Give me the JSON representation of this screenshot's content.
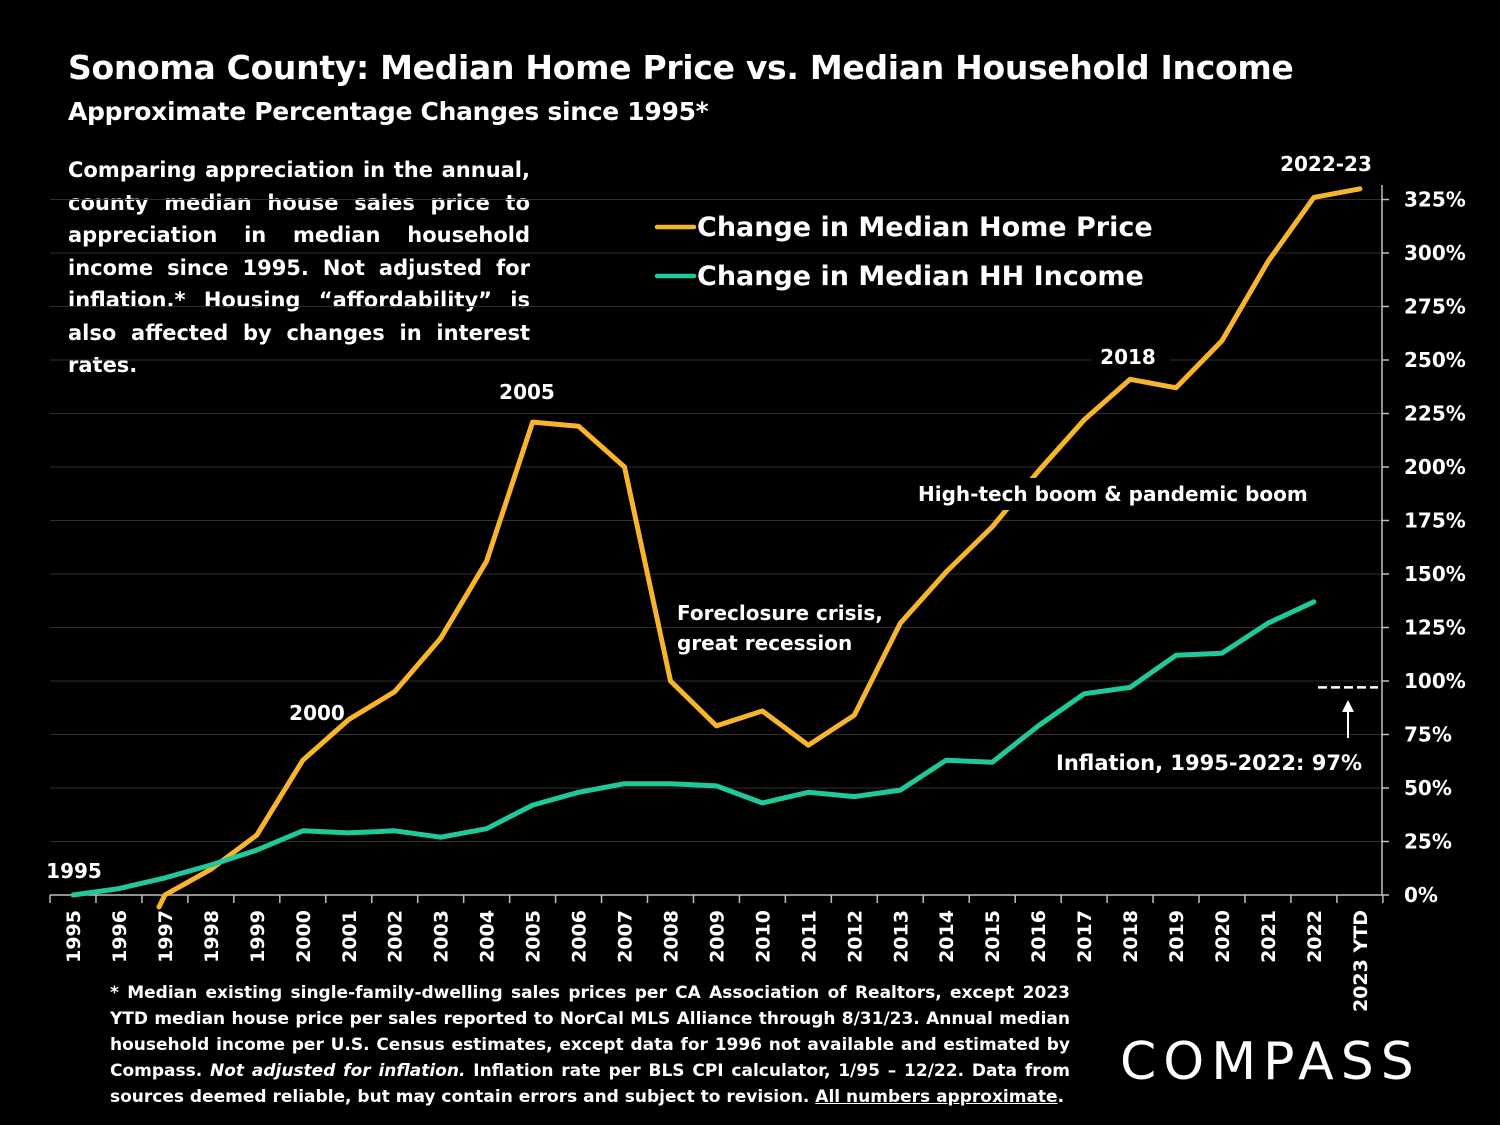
{
  "header": {
    "title": "Sonoma County: Median Home Price vs. Median Household Income",
    "subtitle": "Approximate Percentage Changes since 1995*"
  },
  "description": "Comparing appreciation in the annual, county median house sales price to appreciation in median household income since 1995. Not adjusted for inflation.* Housing “affordability” is also affected by changes in interest rates.",
  "footnote": {
    "part1": "* Median existing single-family-dwelling sales prices per CA Association of Realtors, except 2023 YTD median house price per sales reported to NorCal MLS Alliance through 8/31/23. Annual median household income per U.S. Census estimates, except data for 1996 not available and estimated by Compass. ",
    "italic": "Not adjusted for inflation.",
    "part2": " Inflation rate per BLS CPI calculator, 1/95 – 12/22. Data from sources deemed reliable, but may contain errors and subject to revision. ",
    "underlined": "All numbers approximate",
    "end": "."
  },
  "logo": "COMPASS",
  "colors": {
    "background": "#000000",
    "home_price": "#f7b52b",
    "hh_income": "#1fc99a",
    "text": "#ffffff",
    "grid": "#2e2e2e"
  },
  "chart_data": {
    "type": "line",
    "categories": [
      "1995",
      "1996",
      "1997",
      "1998",
      "1999",
      "2000",
      "2001",
      "2002",
      "2003",
      "2004",
      "2005",
      "2006",
      "2007",
      "2008",
      "2009",
      "2010",
      "2011",
      "2012",
      "2013",
      "2014",
      "2015",
      "2016",
      "2017",
      "2018",
      "2019",
      "2020",
      "2021",
      "2022",
      "2023 YTD"
    ],
    "series": [
      {
        "name": "Change in Median Home Price",
        "color": "#f7b52b",
        "values": [
          null,
          null,
          0,
          12,
          28,
          63,
          82,
          95,
          120,
          156,
          221,
          219,
          200,
          100,
          79,
          86,
          70,
          84,
          127,
          151,
          172,
          198,
          222,
          241,
          237,
          259,
          296,
          326,
          330
        ]
      },
      {
        "name": "Change in Median HH Income",
        "color": "#1fc99a",
        "values": [
          0,
          3,
          8,
          14,
          21,
          30,
          29,
          30,
          27,
          31,
          42,
          48,
          52,
          52,
          51,
          43,
          48,
          46,
          49,
          63,
          62,
          79,
          94,
          97,
          112,
          113,
          127,
          137,
          null
        ]
      }
    ],
    "y_tick_labels": [
      "0%",
      "25%",
      "50%",
      "75%",
      "100%",
      "125%",
      "150%",
      "175%",
      "200%",
      "225%",
      "250%",
      "275%",
      "300%",
      "325%"
    ],
    "ylim": [
      0,
      330
    ],
    "y_axis_side": "right",
    "grid": true,
    "legend_placement": "top-center",
    "inflation_reference": {
      "value": 97,
      "label": "Inflation, 1995-2022:  97%"
    },
    "annotations": [
      {
        "text": "1995",
        "category": "1995"
      },
      {
        "text": "2000",
        "category": "2000"
      },
      {
        "text": "2005",
        "category": "2005"
      },
      {
        "text": "2018",
        "category": "2018"
      },
      {
        "text": "2022-23",
        "category": "2022"
      },
      {
        "text": "Foreclosure crisis,",
        "category": "2008"
      },
      {
        "text": "great recession",
        "category": "2008"
      },
      {
        "text": "High-tech boom & pandemic boom",
        "category": "2016"
      }
    ]
  }
}
